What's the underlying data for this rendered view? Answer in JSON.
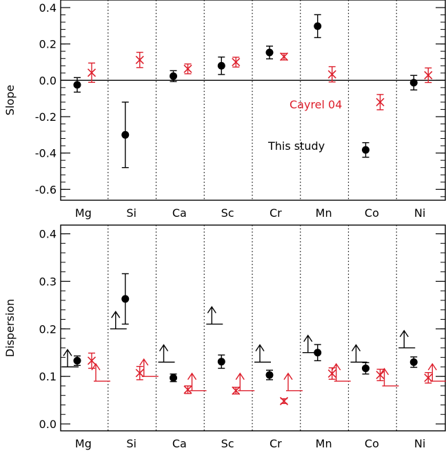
{
  "colors": {
    "axis": "#000000",
    "this_study": "#000000",
    "cayrel04": "#dd1e2b"
  },
  "chart_data": [
    {
      "type": "scatter",
      "panel": "top",
      "ylabel": "Slope",
      "xlabel": "",
      "ylim": [
        -0.65,
        0.42
      ],
      "yticks": [
        0.4,
        0.2,
        0.0,
        -0.2,
        -0.4,
        -0.6
      ],
      "ytick_labels": [
        "0.4",
        "0.2",
        "0.0",
        "-0.2",
        "-0.4",
        "-0.6"
      ],
      "categories": [
        "Mg",
        "Si",
        "Ca",
        "Sc",
        "Cr",
        "Mn",
        "Co",
        "Ni"
      ],
      "zero_line": 0,
      "grid": false,
      "series": [
        {
          "name": "This study",
          "marker": "filled-circle",
          "values": [
            -0.025,
            -0.3,
            0.023,
            0.08,
            0.153,
            0.298,
            -0.383,
            -0.013
          ],
          "errors": [
            0.04,
            0.18,
            0.03,
            0.048,
            0.035,
            0.063,
            0.04,
            0.04
          ]
        },
        {
          "name": "Cayrel 04",
          "marker": "x",
          "values": [
            0.042,
            0.112,
            0.063,
            0.1,
            0.13,
            0.033,
            -0.12,
            0.028
          ],
          "errors": [
            0.053,
            0.042,
            0.027,
            0.027,
            0.018,
            0.042,
            0.042,
            0.04
          ]
        }
      ],
      "annotations": [
        {
          "text": "Cayrel 04",
          "series": "Cayrel 04"
        },
        {
          "text": "This study",
          "series": "This study"
        }
      ]
    },
    {
      "type": "scatter",
      "panel": "bottom",
      "ylabel": "Dispersion",
      "xlabel": "",
      "ylim": [
        -0.01,
        0.41
      ],
      "yticks": [
        0.0,
        0.1,
        0.2,
        0.3,
        0.4
      ],
      "ytick_labels": [
        "0.0",
        "0.1",
        "0.2",
        "0.3",
        "0.4"
      ],
      "categories": [
        "Mg",
        "Si",
        "Ca",
        "Sc",
        "Cr",
        "Mn",
        "Co",
        "Ni"
      ],
      "grid": false,
      "series": [
        {
          "name": "This study",
          "marker": "filled-circle",
          "values": [
            0.133,
            0.263,
            0.097,
            0.131,
            0.103,
            0.15,
            0.117,
            0.13
          ],
          "errors": [
            0.01,
            0.053,
            0.008,
            0.014,
            0.01,
            0.017,
            0.012,
            0.011
          ]
        },
        {
          "name": "Cayrel 04",
          "marker": "x",
          "values": [
            0.133,
            0.107,
            0.072,
            0.07,
            0.048,
            0.106,
            0.103,
            0.097
          ],
          "errors": [
            0.016,
            0.014,
            0.008,
            0.007,
            0.005,
            0.012,
            0.012,
            0.011
          ]
        },
        {
          "name": "This study lower limit",
          "marker": "lower-limit",
          "values": [
            0.12,
            0.2,
            0.13,
            0.21,
            0.13,
            0.15,
            0.13,
            0.16
          ]
        },
        {
          "name": "Cayrel 04 lower limit",
          "marker": "lower-limit",
          "values": [
            0.09,
            0.1,
            0.07,
            0.07,
            0.07,
            0.09,
            0.08,
            0.09
          ]
        }
      ]
    }
  ]
}
